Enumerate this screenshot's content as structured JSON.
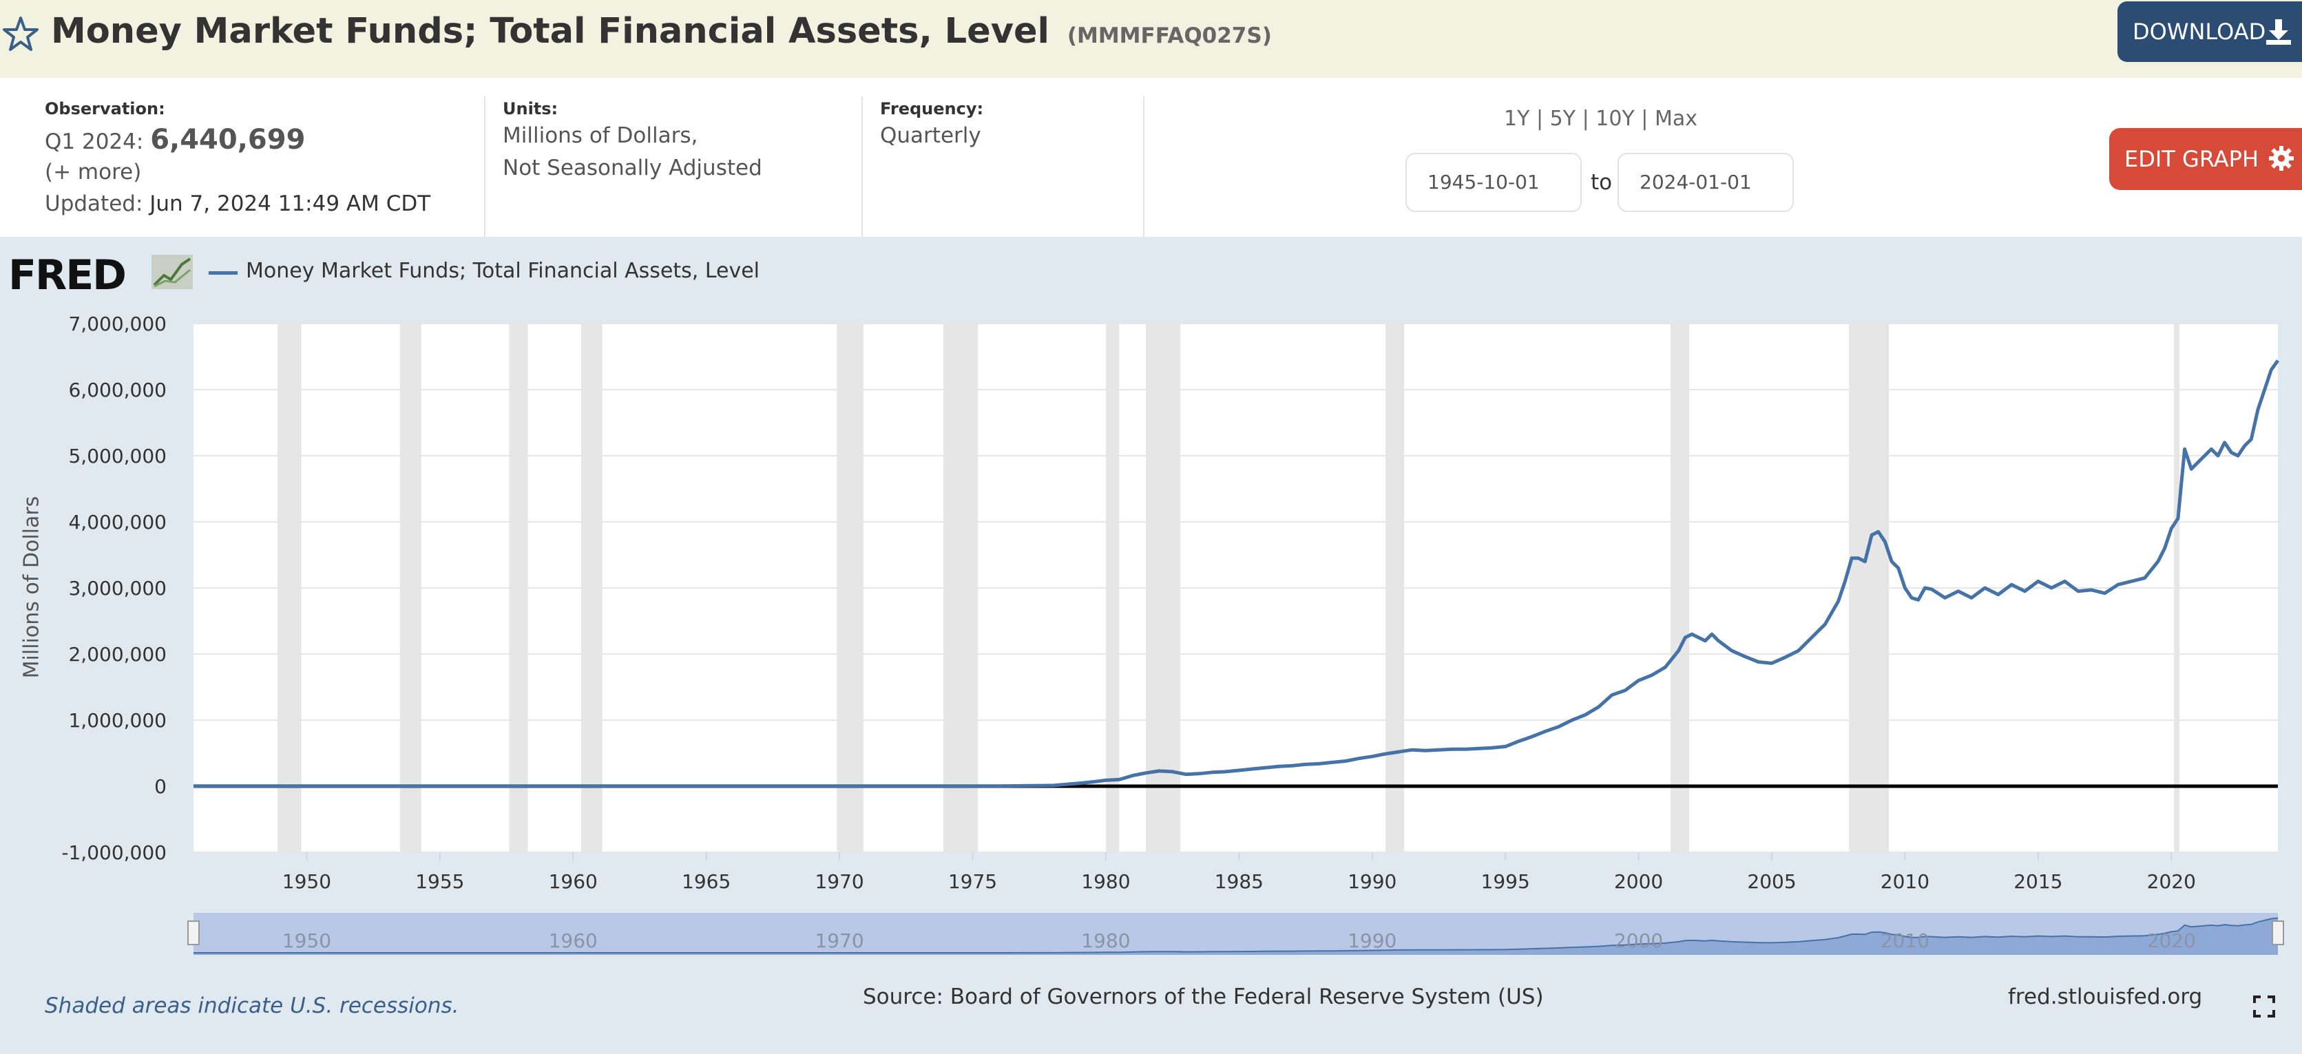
{
  "header": {
    "title": "Money Market Funds; Total Financial Assets, Level",
    "series_id": "(MMMFFAQ027S)",
    "download_label": "DOWNLOAD"
  },
  "info": {
    "observation_label": "Observation:",
    "observation_period": "Q1 2024:",
    "observation_value": "6,440,699",
    "more_label": "(+ more)",
    "updated_label": "Updated:",
    "updated_value": "Jun 7, 2024 11:49 AM CDT",
    "units_label": "Units:",
    "units_line1": "Millions of Dollars,",
    "units_line2": "Not Seasonally Adjusted",
    "frequency_label": "Frequency:",
    "frequency_value": "Quarterly",
    "range_1y": "1Y",
    "range_5y": "5Y",
    "range_10y": "10Y",
    "range_max": "Max",
    "range_sep": "|",
    "start_date": "1945-10-01",
    "to_label": "to",
    "end_date": "2024-01-01",
    "edit_label": "EDIT GRAPH"
  },
  "logo": {
    "text": "FRED"
  },
  "footer": {
    "shaded_note": "Shaded areas indicate U.S. recessions.",
    "source": "Source: Board of Governors of the Federal Reserve System (US)",
    "site": "fred.stlouisfed.org"
  },
  "colors": {
    "header_bg": "#f1f2df",
    "chart_bg": "#e1e9f0",
    "series": "#4572a7",
    "recession": "#e6e6e6",
    "download_btn": "#2b4c73",
    "edit_btn": "#d84a38"
  },
  "chart_data": {
    "type": "line",
    "title": "Money Market Funds; Total Financial Assets, Level",
    "xlabel": "",
    "ylabel": "Millions of Dollars",
    "legend": "Money Market Funds; Total Financial Assets, Level",
    "xlim": [
      1945.75,
      2024.0
    ],
    "ylim": [
      -1000000,
      7000000
    ],
    "y_ticks": [
      -1000000,
      0,
      1000000,
      2000000,
      3000000,
      4000000,
      5000000,
      6000000,
      7000000
    ],
    "y_tick_labels": [
      "-1,000,000",
      "0",
      "1,000,000",
      "2,000,000",
      "3,000,000",
      "4,000,000",
      "5,000,000",
      "6,000,000",
      "7,000,000"
    ],
    "x_ticks": [
      1950,
      1955,
      1960,
      1965,
      1970,
      1975,
      1980,
      1985,
      1990,
      1995,
      2000,
      2005,
      2010,
      2015,
      2020
    ],
    "x_tick_labels": [
      "1950",
      "1955",
      "1960",
      "1965",
      "1970",
      "1975",
      "1980",
      "1985",
      "1990",
      "1995",
      "2000",
      "2005",
      "2010",
      "2015",
      "2020"
    ],
    "navigator_ticks": [
      "1950",
      "1960",
      "1970",
      "1980",
      "1990",
      "2000",
      "2010",
      "2020"
    ],
    "recessions": [
      [
        1948.9,
        1949.8
      ],
      [
        1953.5,
        1954.3
      ],
      [
        1957.6,
        1958.3
      ],
      [
        1960.3,
        1961.1
      ],
      [
        1969.9,
        1970.9
      ],
      [
        1973.9,
        1975.2
      ],
      [
        1980.0,
        1980.5
      ],
      [
        1981.5,
        1982.8
      ],
      [
        1990.5,
        1991.2
      ],
      [
        2001.2,
        2001.9
      ],
      [
        2007.9,
        2009.4
      ],
      [
        2020.1,
        2020.3
      ]
    ],
    "series": [
      {
        "name": "Money Market Funds; Total Financial Assets, Level",
        "x": [
          1945.75,
          1974.0,
          1976.0,
          1978.0,
          1979.0,
          1979.5,
          1980.0,
          1980.5,
          1981.0,
          1981.5,
          1982.0,
          1982.5,
          1982.75,
          1983.0,
          1983.5,
          1984.0,
          1984.5,
          1985.0,
          1985.5,
          1986.0,
          1986.5,
          1987.0,
          1987.5,
          1988.0,
          1988.5,
          1989.0,
          1989.5,
          1990.0,
          1990.5,
          1991.0,
          1991.5,
          1992.0,
          1992.5,
          1993.0,
          1993.5,
          1994.0,
          1994.5,
          1995.0,
          1995.5,
          1996.0,
          1996.5,
          1997.0,
          1997.5,
          1998.0,
          1998.5,
          1999.0,
          1999.5,
          2000.0,
          2000.5,
          2001.0,
          2001.5,
          2001.75,
          2002.0,
          2002.5,
          2002.75,
          2003.0,
          2003.5,
          2004.0,
          2004.5,
          2005.0,
          2005.5,
          2006.0,
          2006.5,
          2007.0,
          2007.5,
          2007.75,
          2008.0,
          2008.25,
          2008.5,
          2008.75,
          2009.0,
          2009.25,
          2009.5,
          2009.75,
          2010.0,
          2010.25,
          2010.5,
          2010.75,
          2011.0,
          2011.5,
          2012.0,
          2012.5,
          2013.0,
          2013.5,
          2014.0,
          2014.5,
          2015.0,
          2015.5,
          2016.0,
          2016.5,
          2017.0,
          2017.5,
          2018.0,
          2018.5,
          2019.0,
          2019.5,
          2019.75,
          2020.0,
          2020.25,
          2020.5,
          2020.75,
          2021.0,
          2021.5,
          2021.75,
          2022.0,
          2022.25,
          2022.5,
          2022.75,
          2023.0,
          2023.25,
          2023.5,
          2023.75,
          2024.0
        ],
        "values": [
          2000,
          2000,
          3000,
          10000,
          45000,
          65000,
          90000,
          100000,
          160000,
          200000,
          230000,
          220000,
          200000,
          180000,
          190000,
          210000,
          220000,
          240000,
          260000,
          280000,
          300000,
          310000,
          330000,
          340000,
          360000,
          380000,
          420000,
          450000,
          490000,
          520000,
          550000,
          540000,
          550000,
          560000,
          560000,
          570000,
          580000,
          600000,
          680000,
          750000,
          830000,
          900000,
          1000000,
          1080000,
          1200000,
          1380000,
          1450000,
          1600000,
          1680000,
          1800000,
          2050000,
          2250000,
          2300000,
          2200000,
          2300000,
          2200000,
          2050000,
          1960000,
          1880000,
          1860000,
          1950000,
          2050000,
          2250000,
          2450000,
          2800000,
          3100000,
          3450000,
          3450000,
          3400000,
          3800000,
          3850000,
          3700000,
          3400000,
          3300000,
          3000000,
          2850000,
          2820000,
          3000000,
          2980000,
          2850000,
          2950000,
          2850000,
          3000000,
          2900000,
          3050000,
          2950000,
          3100000,
          3000000,
          3100000,
          2950000,
          2970000,
          2920000,
          3050000,
          3100000,
          3150000,
          3400000,
          3600000,
          3900000,
          4050000,
          5100000,
          4800000,
          4900000,
          5100000,
          5000000,
          5200000,
          5050000,
          5000000,
          5150000,
          5250000,
          5700000,
          6000000,
          6300000,
          6440699
        ]
      }
    ]
  }
}
